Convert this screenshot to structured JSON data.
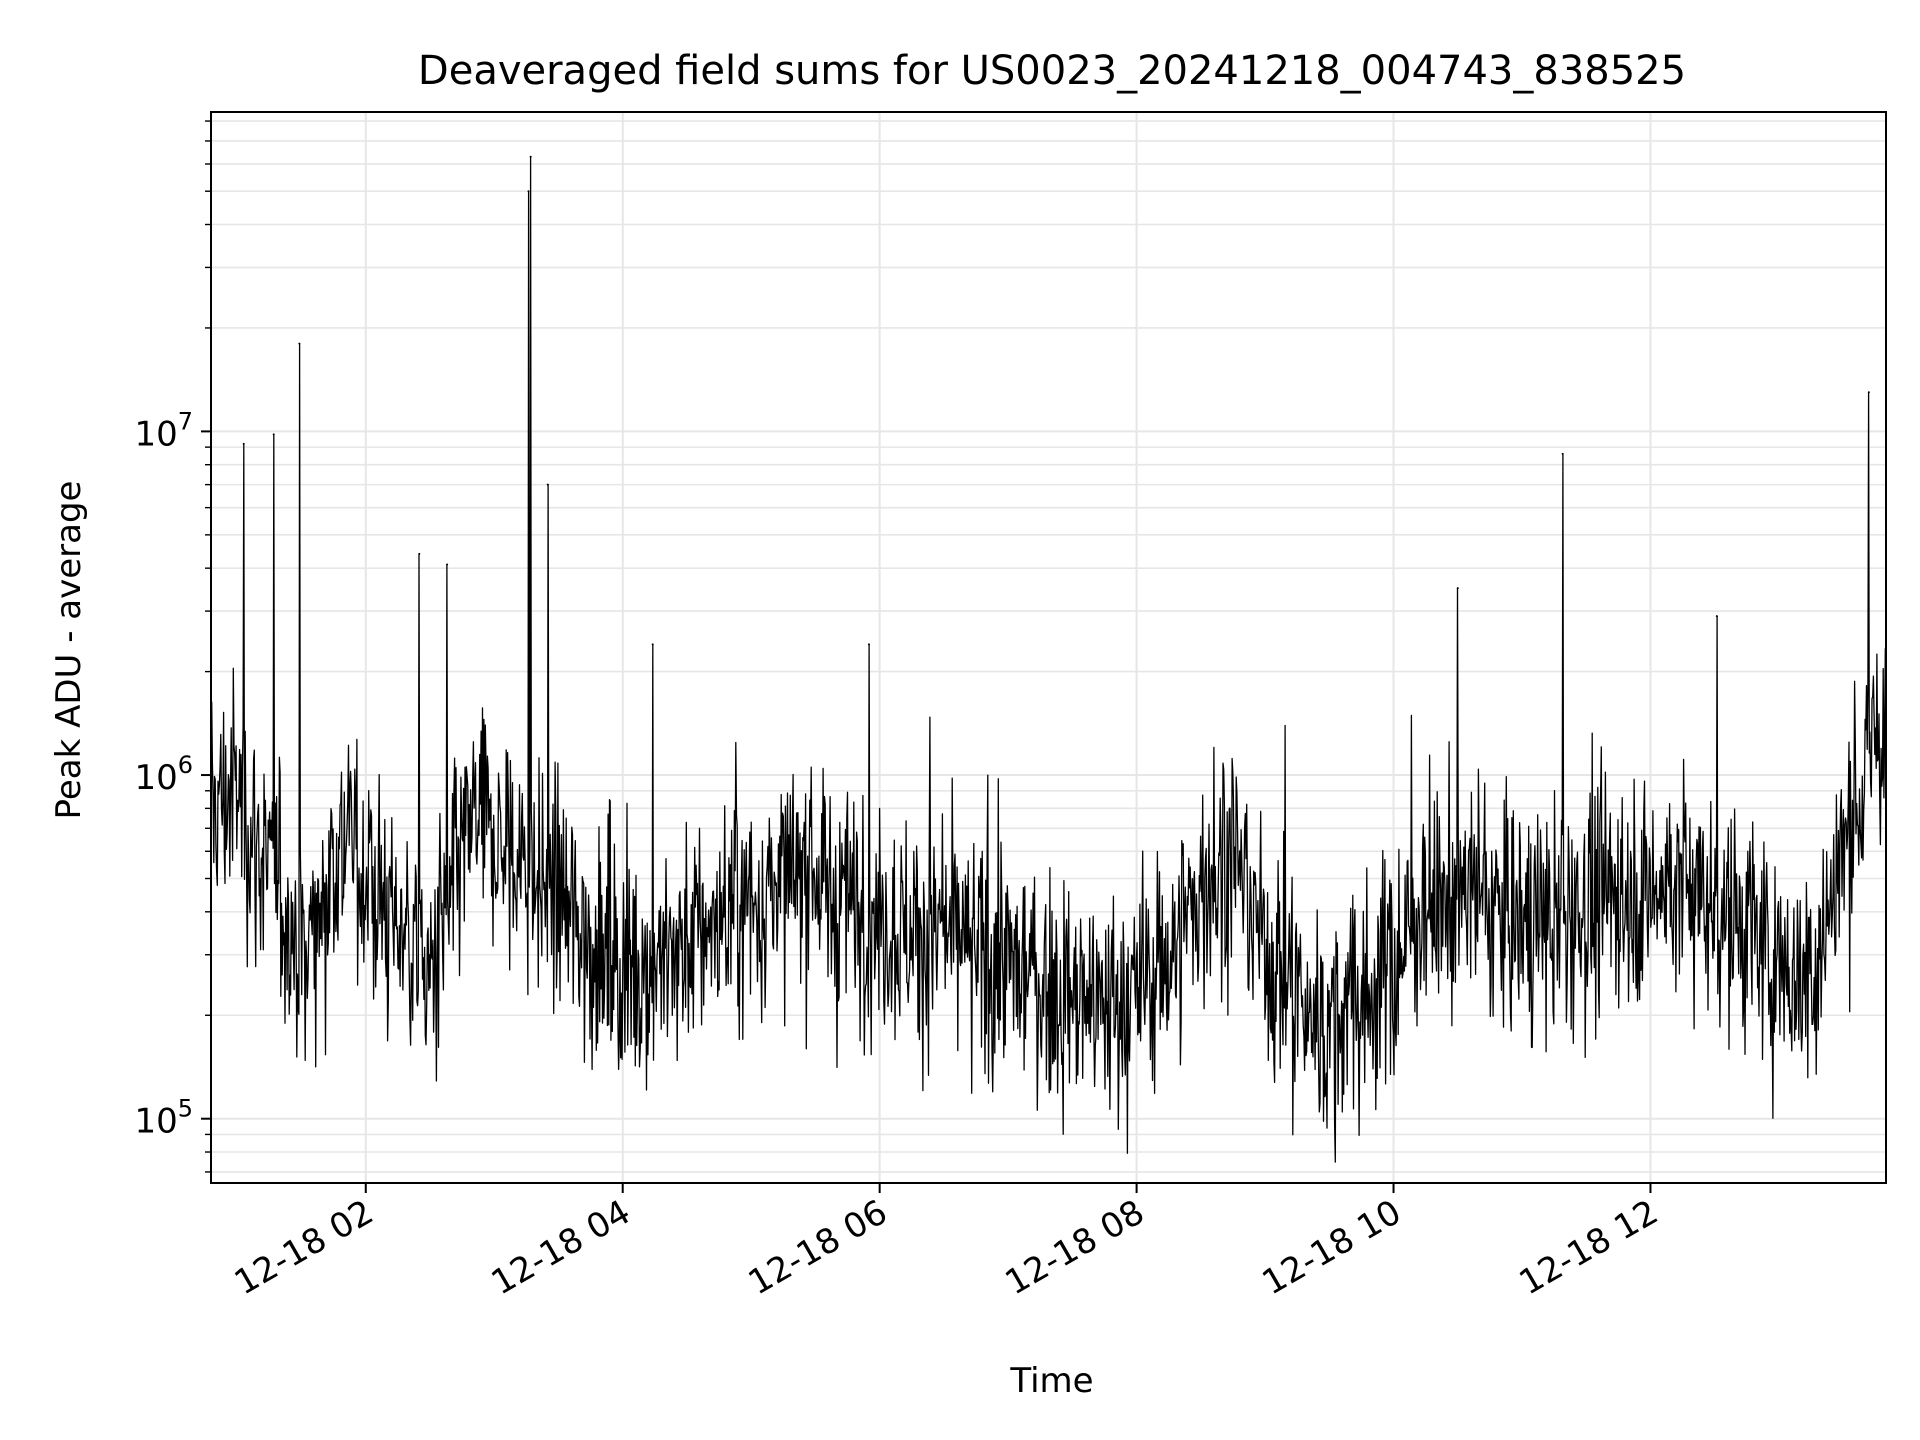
{
  "chart_data": {
    "type": "line",
    "title": "Deaveraged field sums for US0023_20241218_004743_838525",
    "xlabel": "Time",
    "ylabel": "Peak ADU - average",
    "yscale": "log",
    "grid": true,
    "xlim": [
      "2024-12-18 00:47:43",
      "2024-12-18 13:50:00"
    ],
    "ylim": [
      65000,
      85000000
    ],
    "x_ticks": [
      "12-18 02",
      "12-18 04",
      "12-18 06",
      "12-18 08",
      "12-18 10",
      "12-18 12"
    ],
    "y_ticks": [
      {
        "value": 100000,
        "base": "10",
        "exp": "5"
      },
      {
        "value": 1000000,
        "base": "10",
        "exp": "6"
      },
      {
        "value": 10000000,
        "base": "10",
        "exp": "7"
      }
    ],
    "series": [
      {
        "color": "#000000",
        "x": [
          "2024-12-18 00:47:43",
          "2024-12-18 01:00",
          "2024-12-18 01:10",
          "2024-12-18 01:20",
          "2024-12-18 01:30",
          "2024-12-18 01:40",
          "2024-12-18 01:50",
          "2024-12-18 02:00",
          "2024-12-18 02:10",
          "2024-12-18 02:20",
          "2024-12-18 02:30",
          "2024-12-18 02:40",
          "2024-12-18 02:50",
          "2024-12-18 03:00",
          "2024-12-18 03:10",
          "2024-12-18 03:20",
          "2024-12-18 03:30",
          "2024-12-18 03:40",
          "2024-12-18 03:50",
          "2024-12-18 04:00",
          "2024-12-18 04:15",
          "2024-12-18 04:30",
          "2024-12-18 04:45",
          "2024-12-18 05:00",
          "2024-12-18 05:15",
          "2024-12-18 05:30",
          "2024-12-18 05:45",
          "2024-12-18 06:00",
          "2024-12-18 06:15",
          "2024-12-18 06:30",
          "2024-12-18 06:45",
          "2024-12-18 07:00",
          "2024-12-18 07:15",
          "2024-12-18 07:30",
          "2024-12-18 07:45",
          "2024-12-18 08:00",
          "2024-12-18 08:15",
          "2024-12-18 08:30",
          "2024-12-18 08:45",
          "2024-12-18 09:00",
          "2024-12-18 09:15",
          "2024-12-18 09:30",
          "2024-12-18 09:45",
          "2024-12-18 10:00",
          "2024-12-18 10:15",
          "2024-12-18 10:30",
          "2024-12-18 10:45",
          "2024-12-18 11:00",
          "2024-12-18 11:15",
          "2024-12-18 11:30",
          "2024-12-18 11:45",
          "2024-12-18 12:00",
          "2024-12-18 12:15",
          "2024-12-18 12:30",
          "2024-12-18 12:45",
          "2024-12-18 13:00",
          "2024-12-18 13:15",
          "2024-12-18 13:30",
          "2024-12-18 13:45"
        ],
        "y": [
          800000,
          900000,
          600000,
          450000,
          280000,
          450000,
          700000,
          500000,
          400000,
          350000,
          250000,
          450000,
          700000,
          650000,
          550000,
          500000,
          420000,
          350000,
          300000,
          280000,
          280000,
          320000,
          380000,
          420000,
          480000,
          500000,
          420000,
          380000,
          350000,
          330000,
          300000,
          280000,
          250000,
          220000,
          210000,
          230000,
          300000,
          450000,
          600000,
          320000,
          220000,
          180000,
          220000,
          280000,
          420000,
          450000,
          420000,
          380000,
          360000,
          420000,
          480000,
          450000,
          500000,
          420000,
          350000,
          280000,
          250000,
          600000,
          1300000
        ],
        "spikes": [
          {
            "x": "2024-12-18 01:03",
            "y": 9200000
          },
          {
            "x": "2024-12-18 01:17",
            "y": 9800000
          },
          {
            "x": "2024-12-18 01:29",
            "y": 18000000
          },
          {
            "x": "2024-12-18 02:25",
            "y": 4400000
          },
          {
            "x": "2024-12-18 02:38",
            "y": 4100000
          },
          {
            "x": "2024-12-18 03:16",
            "y": 50000000
          },
          {
            "x": "2024-12-18 03:17",
            "y": 63000000
          },
          {
            "x": "2024-12-18 03:25",
            "y": 7000000
          },
          {
            "x": "2024-12-18 04:14",
            "y": 2400000
          },
          {
            "x": "2024-12-18 05:55",
            "y": 2400000
          },
          {
            "x": "2024-12-18 10:30",
            "y": 3500000
          },
          {
            "x": "2024-12-18 11:19",
            "y": 8600000
          },
          {
            "x": "2024-12-18 12:31",
            "y": 2900000
          },
          {
            "x": "2024-12-18 13:42",
            "y": 13000000
          }
        ]
      }
    ]
  }
}
